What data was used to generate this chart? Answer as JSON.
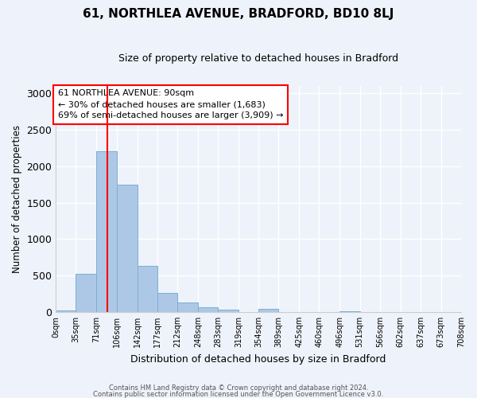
{
  "title": "61, NORTHLEA AVENUE, BRADFORD, BD10 8LJ",
  "subtitle": "Size of property relative to detached houses in Bradford",
  "xlabel": "Distribution of detached houses by size in Bradford",
  "ylabel": "Number of detached properties",
  "bar_color": "#adc8e6",
  "bar_edgecolor": "#7aafd4",
  "background_color": "#eef2fa",
  "grid_color": "#ffffff",
  "bin_edges": [
    0,
    35,
    71,
    106,
    142,
    177,
    212,
    248,
    283,
    319,
    354,
    389,
    425,
    460,
    496,
    531,
    566,
    602,
    637,
    673,
    708
  ],
  "bin_labels": [
    "0sqm",
    "35sqm",
    "71sqm",
    "106sqm",
    "142sqm",
    "177sqm",
    "212sqm",
    "248sqm",
    "283sqm",
    "319sqm",
    "354sqm",
    "389sqm",
    "425sqm",
    "460sqm",
    "496sqm",
    "531sqm",
    "566sqm",
    "602sqm",
    "637sqm",
    "673sqm",
    "708sqm"
  ],
  "bar_heights": [
    18,
    520,
    2200,
    1750,
    635,
    260,
    130,
    65,
    30,
    0,
    38,
    0,
    0,
    0,
    14,
    0,
    0,
    0,
    0,
    0
  ],
  "red_line_x": 90,
  "ylim": [
    0,
    3100
  ],
  "yticks": [
    0,
    500,
    1000,
    1500,
    2000,
    2500,
    3000
  ],
  "annotation_title": "61 NORTHLEA AVENUE: 90sqm",
  "annotation_line1": "← 30% of detached houses are smaller (1,683)",
  "annotation_line2": "69% of semi-detached houses are larger (3,909) →",
  "footer_line1": "Contains HM Land Registry data © Crown copyright and database right 2024.",
  "footer_line2": "Contains public sector information licensed under the Open Government Licence v3.0."
}
